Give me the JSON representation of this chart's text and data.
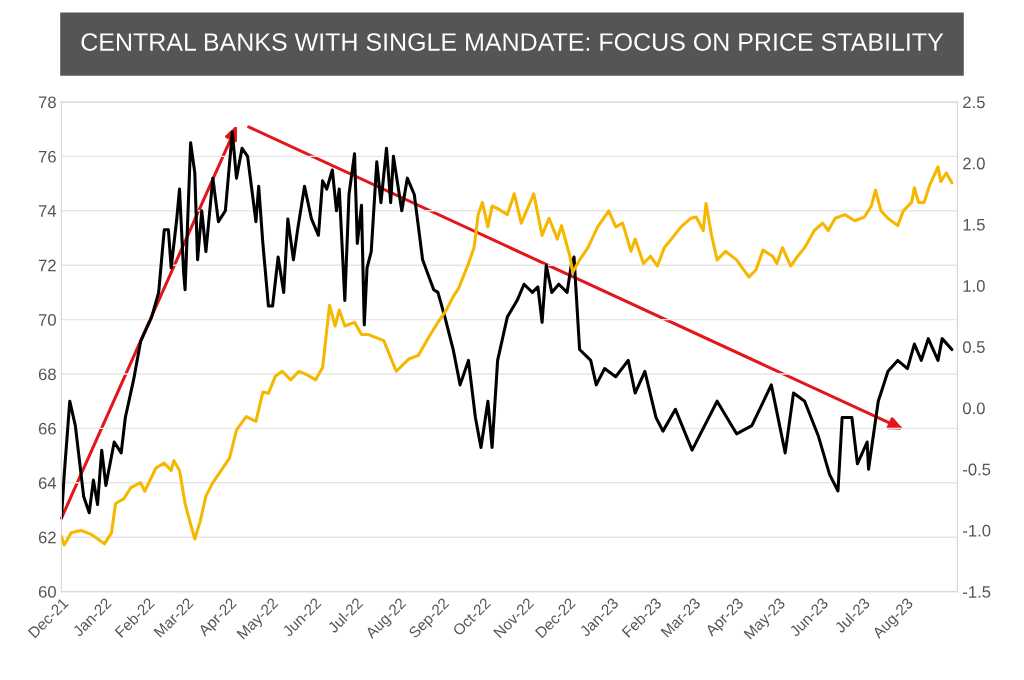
{
  "chart_data": {
    "type": "line",
    "title": "CENTRAL BANKS WITH SINGLE MANDATE: FOCUS ON PRICE STABILITY",
    "xlim": [
      "2021-12-01",
      "2023-09-07"
    ],
    "xticks": [
      {
        "value": "2021-12",
        "label": "Dec-21"
      },
      {
        "value": "2022-01",
        "label": "Jan-22"
      },
      {
        "value": "2022-02",
        "label": "Feb-22"
      },
      {
        "value": "2022-03",
        "label": "Mar-22"
      },
      {
        "value": "2022-04",
        "label": "Apr-22"
      },
      {
        "value": "2022-05",
        "label": "May-22"
      },
      {
        "value": "2022-06",
        "label": "Jun-22"
      },
      {
        "value": "2022-07",
        "label": "Jul-22"
      },
      {
        "value": "2022-08",
        "label": "Aug-22"
      },
      {
        "value": "2022-09",
        "label": "Sep-22"
      },
      {
        "value": "2022-10",
        "label": "Oct-22"
      },
      {
        "value": "2022-11",
        "label": "Nov-22"
      },
      {
        "value": "2022-12",
        "label": "Dec-22"
      },
      {
        "value": "2023-01",
        "label": "Jan-23"
      },
      {
        "value": "2023-02",
        "label": "Feb-23"
      },
      {
        "value": "2023-03",
        "label": "Mar-23"
      },
      {
        "value": "2023-04",
        "label": "Apr-23"
      },
      {
        "value": "2023-05",
        "label": "May-23"
      },
      {
        "value": "2023-06",
        "label": "Jun-23"
      },
      {
        "value": "2023-07",
        "label": "Jul-23"
      },
      {
        "value": "2023-08",
        "label": "Aug-23"
      }
    ],
    "ylim": [
      60,
      78
    ],
    "yticks": [
      60,
      62,
      64,
      66,
      68,
      70,
      72,
      74,
      76,
      78
    ],
    "y2lim": [
      -1.5,
      2.5
    ],
    "y2ticks": [
      {
        "value": -1.5,
        "label": "-1.5"
      },
      {
        "value": -1,
        "label": "-1.0"
      },
      {
        "value": -0.5,
        "label": "-0.5"
      },
      {
        "value": 0,
        "label": "0.0"
      },
      {
        "value": 0.5,
        "label": "0.5"
      },
      {
        "value": 1,
        "label": "1.0"
      },
      {
        "value": 1.5,
        "label": "1.5"
      },
      {
        "value": 2,
        "label": "2.0"
      },
      {
        "value": 2.5,
        "label": "2.5"
      }
    ],
    "grid": "y",
    "line_style": "solid",
    "marker": "none",
    "series": [
      {
        "color": "#000000",
        "x": [
          "2021-12-01",
          "2021-12-03",
          "2021-12-07",
          "2021-12-11",
          "2021-12-17",
          "2021-12-21",
          "2021-12-24",
          "2021-12-27",
          "2021-12-30",
          "2022-01-02",
          "2022-01-08",
          "2022-01-13",
          "2022-01-16",
          "2022-01-22",
          "2022-01-27",
          "2022-02-04",
          "2022-02-09",
          "2022-02-13",
          "2022-02-16",
          "2022-02-18",
          "2022-02-22",
          "2022-02-24",
          "2022-02-27",
          "2022-02-28",
          "2022-03-04",
          "2022-03-07",
          "2022-03-09",
          "2022-03-12",
          "2022-03-15",
          "2022-03-20",
          "2022-03-24",
          "2022-03-29",
          "2022-04-03",
          "2022-04-06",
          "2022-04-10",
          "2022-04-14",
          "2022-04-17",
          "2022-04-20",
          "2022-04-22",
          "2022-04-25",
          "2022-04-29",
          "2022-05-02",
          "2022-05-06",
          "2022-05-10",
          "2022-05-13",
          "2022-05-17",
          "2022-05-20",
          "2022-05-25",
          "2022-05-30",
          "2022-06-04",
          "2022-06-07",
          "2022-06-10",
          "2022-06-14",
          "2022-06-17",
          "2022-06-19",
          "2022-06-23",
          "2022-06-26",
          "2022-06-30",
          "2022-07-02",
          "2022-07-05",
          "2022-07-07",
          "2022-07-09",
          "2022-07-12",
          "2022-07-16",
          "2022-07-19",
          "2022-07-23",
          "2022-07-26",
          "2022-07-28",
          "2022-08-03",
          "2022-08-07",
          "2022-08-12",
          "2022-08-18",
          "2022-08-26",
          "2022-08-29",
          "2022-09-03",
          "2022-09-09",
          "2022-09-14",
          "2022-09-20",
          "2022-09-25",
          "2022-09-29",
          "2022-10-04",
          "2022-10-07",
          "2022-10-11",
          "2022-10-18",
          "2022-10-25",
          "2022-10-30",
          "2022-11-05",
          "2022-11-09",
          "2022-11-12",
          "2022-11-15",
          "2022-11-19",
          "2022-11-24",
          "2022-11-30",
          "2022-12-03",
          "2022-12-05",
          "2022-12-09",
          "2022-12-17",
          "2022-12-21",
          "2022-12-27",
          "2023-01-04",
          "2023-01-13",
          "2023-01-18",
          "2023-01-25",
          "2023-02-02",
          "2023-02-07",
          "2023-02-16",
          "2023-02-28",
          "2023-03-18",
          "2023-04-01",
          "2023-04-12",
          "2023-04-26",
          "2023-05-06",
          "2023-05-12",
          "2023-05-20",
          "2023-05-30",
          "2023-06-07",
          "2023-06-13",
          "2023-06-16",
          "2023-06-23",
          "2023-06-27",
          "2023-07-04",
          "2023-07-05",
          "2023-07-12",
          "2023-07-19",
          "2023-07-26",
          "2023-08-02",
          "2023-08-07",
          "2023-08-12",
          "2023-08-17",
          "2023-08-24",
          "2023-08-27",
          "2023-09-03"
        ],
        "values": [
          62.7,
          64.3,
          67.0,
          66.1,
          63.5,
          62.9,
          64.1,
          63.2,
          65.2,
          63.9,
          65.5,
          65.1,
          66.4,
          67.8,
          69.2,
          70.1,
          71.0,
          73.3,
          73.3,
          71.9,
          73.7,
          74.8,
          71.7,
          71.1,
          76.5,
          75.4,
          72.2,
          74.0,
          72.5,
          75.2,
          73.6,
          74.0,
          76.9,
          75.2,
          76.3,
          76.0,
          74.8,
          73.6,
          74.9,
          72.8,
          70.5,
          70.5,
          72.3,
          71.0,
          73.7,
          72.2,
          73.3,
          74.9,
          73.7,
          73.1,
          75.1,
          74.8,
          75.5,
          74.0,
          74.8,
          70.7,
          74.6,
          76.1,
          72.8,
          74.2,
          69.8,
          71.9,
          72.5,
          75.8,
          74.3,
          76.3,
          74.3,
          76.0,
          74.0,
          75.2,
          74.6,
          72.2,
          71.1,
          71.0,
          70.1,
          68.9,
          67.6,
          68.5,
          66.4,
          65.3,
          67.0,
          65.3,
          68.5,
          70.1,
          70.7,
          71.3,
          71.0,
          71.2,
          69.9,
          72.0,
          71.0,
          71.3,
          71.0,
          72.0,
          72.3,
          68.9,
          68.5,
          67.6,
          68.2,
          67.9,
          68.5,
          67.3,
          68.1,
          66.4,
          65.9,
          66.7,
          65.2,
          67.0,
          65.8,
          66.1,
          67.6,
          65.1,
          67.3,
          67.0,
          65.7,
          64.3,
          63.7,
          66.4,
          66.4,
          64.7,
          65.5,
          64.5,
          67.0,
          68.1,
          68.5,
          68.2,
          69.1,
          68.5,
          69.3,
          68.5,
          69.3,
          68.9
        ]
      },
      {
        "color": "#f5b700",
        "axis": "y2",
        "x": [
          "2021-12-01",
          "2021-12-03",
          "2021-12-08",
          "2021-12-15",
          "2021-12-22",
          "2022-01-01",
          "2022-01-06",
          "2022-01-09",
          "2022-01-15",
          "2022-01-20",
          "2022-01-27",
          "2022-01-30",
          "2022-02-07",
          "2022-02-13",
          "2022-02-18",
          "2022-02-20",
          "2022-02-24",
          "2022-02-28",
          "2022-03-04",
          "2022-03-07",
          "2022-03-11",
          "2022-03-15",
          "2022-03-20",
          "2022-03-26",
          "2022-04-01",
          "2022-04-06",
          "2022-04-13",
          "2022-04-20",
          "2022-04-25",
          "2022-04-29",
          "2022-05-04",
          "2022-05-09",
          "2022-05-15",
          "2022-05-21",
          "2022-05-27",
          "2022-06-02",
          "2022-06-07",
          "2022-06-12",
          "2022-06-16",
          "2022-06-19",
          "2022-06-23",
          "2022-06-30",
          "2022-07-05",
          "2022-07-10",
          "2022-07-21",
          "2022-07-30",
          "2022-08-08",
          "2022-08-15",
          "2022-08-22",
          "2022-08-29",
          "2022-09-04",
          "2022-09-09",
          "2022-09-13",
          "2022-09-20",
          "2022-09-24",
          "2022-09-27",
          "2022-09-30",
          "2022-10-04",
          "2022-10-07",
          "2022-10-11",
          "2022-10-18",
          "2022-10-23",
          "2022-10-28",
          "2022-11-06",
          "2022-11-12",
          "2022-11-17",
          "2022-11-23",
          "2022-11-26",
          "2022-12-02",
          "2022-12-04",
          "2022-12-09",
          "2022-12-15",
          "2022-12-22",
          "2022-12-30",
          "2023-01-04",
          "2023-01-09",
          "2023-01-15",
          "2023-01-18",
          "2023-01-24",
          "2023-01-29",
          "2023-02-03",
          "2023-02-08",
          "2023-02-13",
          "2023-02-20",
          "2023-02-27",
          "2023-03-03",
          "2023-03-08",
          "2023-03-10",
          "2023-03-14",
          "2023-03-18",
          "2023-03-24",
          "2023-04-01",
          "2023-04-06",
          "2023-04-10",
          "2023-04-15",
          "2023-04-20",
          "2023-04-27",
          "2023-04-30",
          "2023-05-04",
          "2023-05-10",
          "2023-05-15",
          "2023-05-20",
          "2023-05-27",
          "2023-06-02",
          "2023-06-06",
          "2023-06-11",
          "2023-06-18",
          "2023-06-25",
          "2023-07-02",
          "2023-07-07",
          "2023-07-10",
          "2023-07-14",
          "2023-07-19",
          "2023-07-26",
          "2023-07-30",
          "2023-08-05",
          "2023-08-07",
          "2023-08-10",
          "2023-08-14",
          "2023-08-18",
          "2023-08-24",
          "2023-08-26",
          "2023-08-30",
          "2023-09-03"
        ],
        "values": [
          -1.05,
          -1.12,
          -1.02,
          -1.0,
          -1.03,
          -1.11,
          -1.02,
          -0.78,
          -0.74,
          -0.65,
          -0.61,
          -0.68,
          -0.49,
          -0.45,
          -0.51,
          -0.43,
          -0.51,
          -0.78,
          -0.95,
          -1.07,
          -0.92,
          -0.72,
          -0.61,
          -0.51,
          -0.41,
          -0.18,
          -0.07,
          -0.11,
          0.13,
          0.12,
          0.26,
          0.3,
          0.23,
          0.3,
          0.27,
          0.23,
          0.33,
          0.84,
          0.67,
          0.8,
          0.67,
          0.7,
          0.6,
          0.6,
          0.55,
          0.3,
          0.4,
          0.43,
          0.57,
          0.7,
          0.8,
          0.91,
          0.98,
          1.18,
          1.31,
          1.58,
          1.68,
          1.48,
          1.65,
          1.63,
          1.58,
          1.75,
          1.51,
          1.75,
          1.41,
          1.55,
          1.38,
          1.49,
          1.24,
          1.11,
          1.21,
          1.31,
          1.48,
          1.61,
          1.48,
          1.51,
          1.28,
          1.38,
          1.18,
          1.24,
          1.16,
          1.31,
          1.38,
          1.48,
          1.55,
          1.56,
          1.45,
          1.67,
          1.41,
          1.21,
          1.28,
          1.21,
          1.13,
          1.07,
          1.13,
          1.29,
          1.24,
          1.18,
          1.31,
          1.16,
          1.24,
          1.31,
          1.45,
          1.51,
          1.45,
          1.55,
          1.58,
          1.53,
          1.56,
          1.65,
          1.78,
          1.61,
          1.55,
          1.49,
          1.61,
          1.68,
          1.8,
          1.68,
          1.68,
          1.82,
          1.97,
          1.85,
          1.92,
          1.84
        ]
      }
    ]
  }
}
